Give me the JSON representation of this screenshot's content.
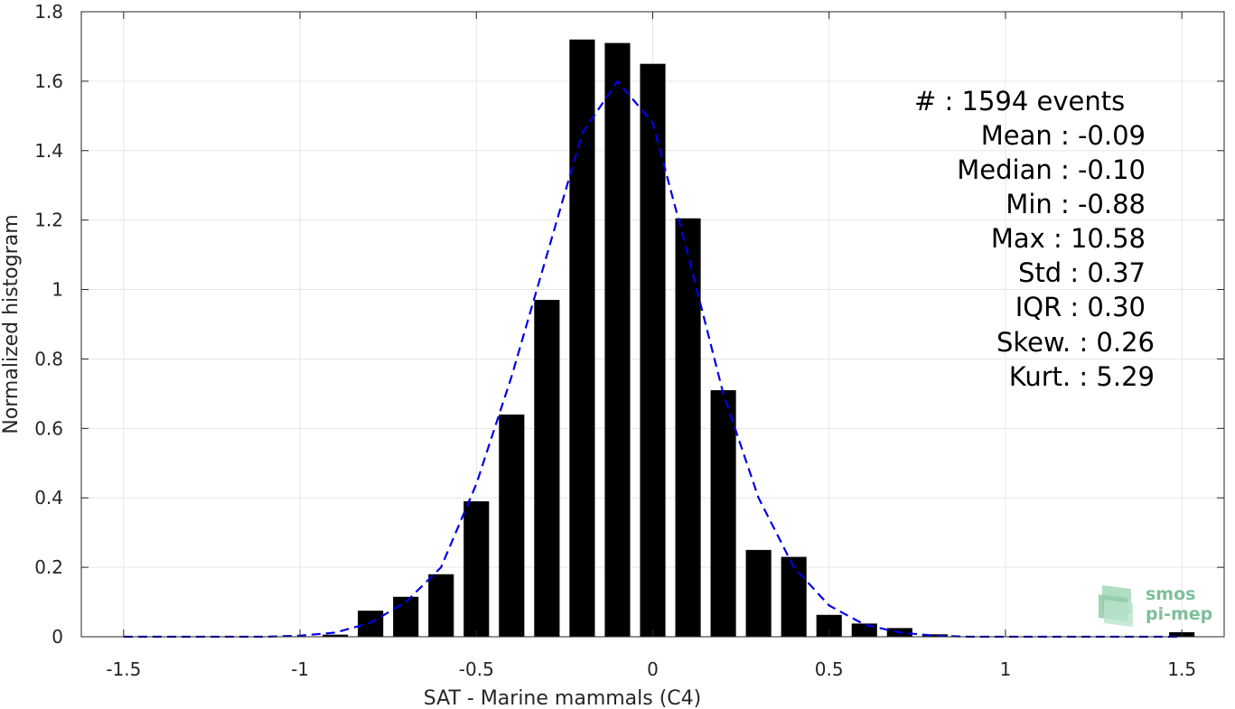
{
  "chart_data": {
    "type": "bar",
    "xlabel": "SAT - Marine mammals (C4)",
    "ylabel": "Normalized histogram",
    "xlim": [
      -1.62,
      1.62
    ],
    "ylim": [
      0,
      1.8
    ],
    "xticks": [
      -1.5,
      -1,
      -0.5,
      0,
      0.5,
      1,
      1.5
    ],
    "xtick_labels": [
      "-1.5",
      "-1",
      "-0.5",
      "0",
      "0.5",
      "1",
      "1.5"
    ],
    "yticks": [
      0,
      0.2,
      0.4,
      0.6,
      0.8,
      1,
      1.2,
      1.4,
      1.6,
      1.8
    ],
    "ytick_labels": [
      "0",
      "0.2",
      "0.4",
      "0.6",
      "0.8",
      "1",
      "1.2",
      "1.4",
      "1.6",
      "1.8"
    ],
    "grid": true,
    "bar_width": 0.072,
    "bars": {
      "x": [
        -0.9,
        -0.8,
        -0.7,
        -0.6,
        -0.5,
        -0.4,
        -0.3,
        -0.2,
        -0.1,
        0.0,
        0.1,
        0.2,
        0.3,
        0.4,
        0.5,
        0.6,
        0.7,
        0.8,
        1.5
      ],
      "values": [
        0.006,
        0.075,
        0.115,
        0.18,
        0.39,
        0.64,
        0.97,
        1.72,
        1.71,
        1.65,
        1.205,
        0.71,
        0.25,
        0.23,
        0.063,
        0.038,
        0.025,
        0.007,
        0.013
      ],
      "color": "#000000"
    },
    "fit_curve": {
      "style": "dashed",
      "color": "#0000e6",
      "x": [
        -1.5,
        -1.4,
        -1.3,
        -1.2,
        -1.1,
        -1.0,
        -0.9,
        -0.8,
        -0.7,
        -0.6,
        -0.5,
        -0.4,
        -0.3,
        -0.2,
        -0.1,
        0.0,
        0.1,
        0.2,
        0.3,
        0.4,
        0.5,
        0.6,
        0.7,
        0.8,
        0.9,
        1.0,
        1.1,
        1.2,
        1.3,
        1.4,
        1.5
      ],
      "y": [
        0.0,
        0.0,
        0.0,
        0.0,
        0.0,
        0.003,
        0.012,
        0.04,
        0.1,
        0.2,
        0.44,
        0.75,
        1.1,
        1.45,
        1.6,
        1.48,
        1.1,
        0.7,
        0.4,
        0.2,
        0.09,
        0.035,
        0.012,
        0.003,
        0.0,
        0.0,
        0.0,
        0.0,
        0.0,
        0.0,
        0.0
      ]
    }
  },
  "stats": {
    "count_label": "#  : 1594 events",
    "mean": "Mean : -0.09",
    "median": "Median : -0.10",
    "min": "Min : -0.88",
    "max": "Max : 10.58",
    "std": "Std : 0.37",
    "iqr": "IQR : 0.30",
    "skew": "Skew. : 0.26",
    "kurt": "Kurt. : 5.29"
  },
  "logo": {
    "line1": "smos",
    "line2": "pi-mep",
    "color": "#7fbf9a"
  }
}
